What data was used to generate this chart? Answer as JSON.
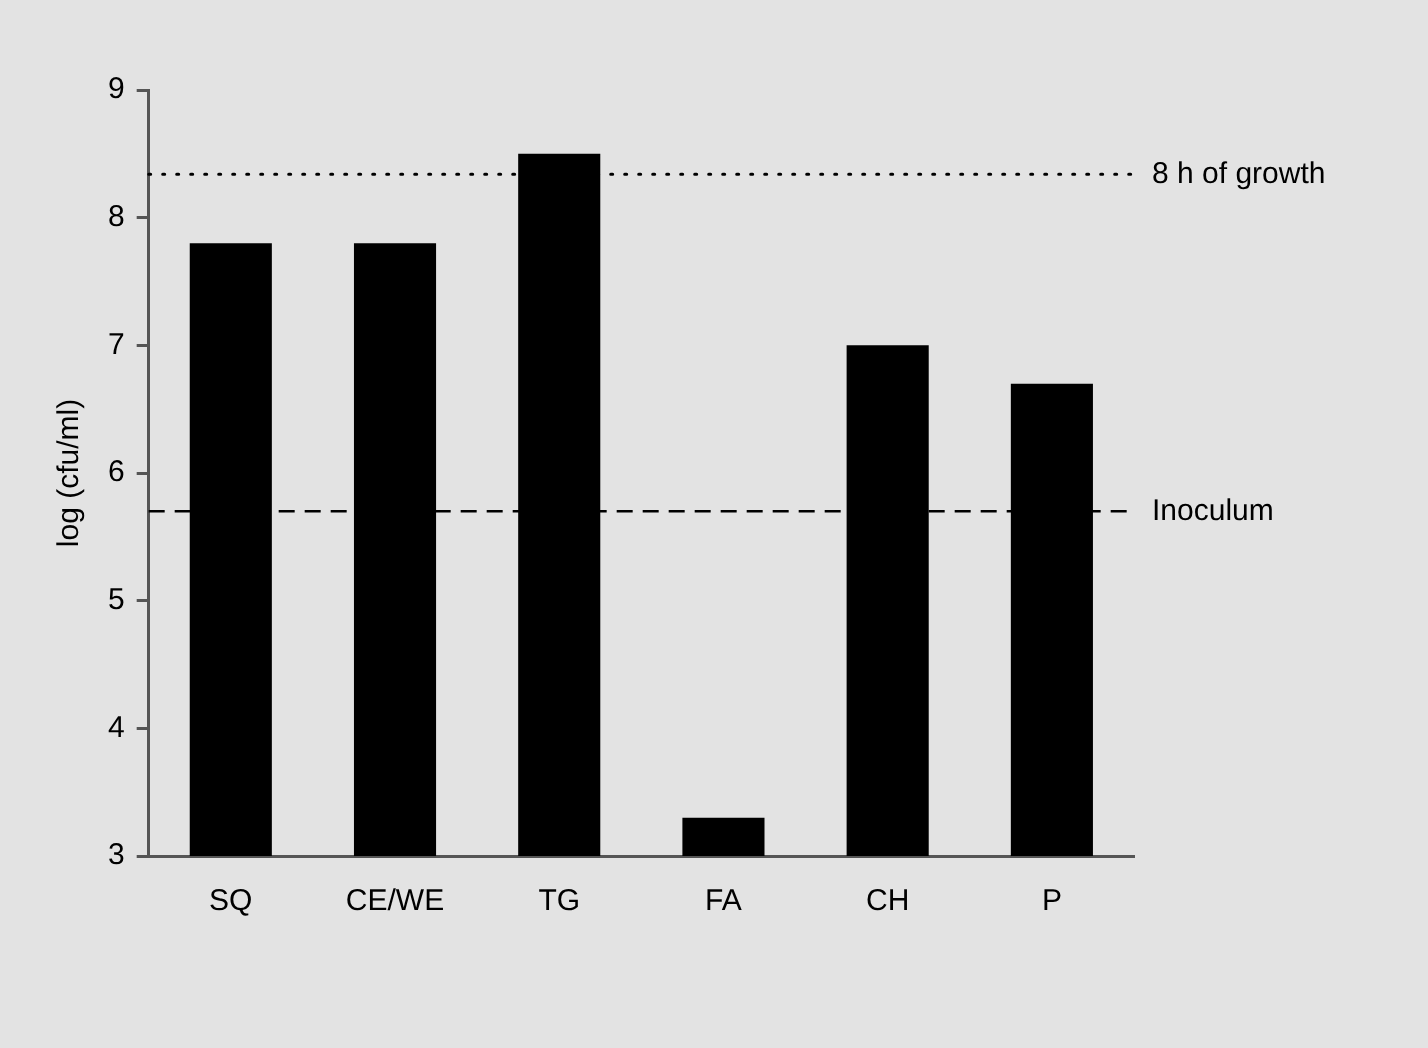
{
  "chart_data": {
    "type": "bar",
    "ylabel": "log (cfu/ml)",
    "categories": [
      "SQ",
      "CE/WE",
      "TG",
      "FA",
      "CH",
      "P"
    ],
    "values": [
      7.8,
      7.8,
      8.5,
      3.3,
      7.0,
      6.7
    ],
    "color": "#000000",
    "ylim": [
      3,
      9
    ],
    "yticks": [
      3,
      4,
      5,
      6,
      7,
      8,
      9
    ],
    "grid": false,
    "legend": false,
    "ref_lines": [
      {
        "axis": "y",
        "value": 8.34,
        "label": "8 h of growth",
        "line_style": "dotted",
        "color": "#000000"
      },
      {
        "axis": "y",
        "value": 5.7,
        "label": "Inoculum",
        "line_style": "dashed",
        "color": "#000000"
      }
    ]
  }
}
